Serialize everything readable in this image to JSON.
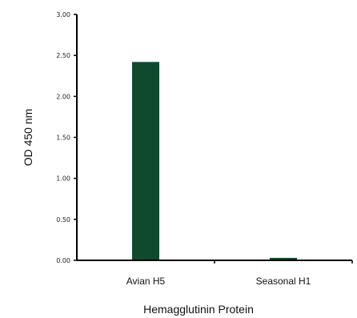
{
  "chart_data": {
    "type": "bar",
    "categories": [
      "Avian H5",
      "Seasonal H1"
    ],
    "values": [
      2.42,
      0.03
    ],
    "xlabel": "Hemagglutinin Protein",
    "ylabel": "OD 450 nm",
    "ylim": [
      0,
      3
    ],
    "yticks": [
      "0.00",
      "0.50",
      "1.00",
      "1.50",
      "2.00",
      "2.50",
      "3.00"
    ],
    "grid": false,
    "bar_color": "#0f4a2f"
  }
}
